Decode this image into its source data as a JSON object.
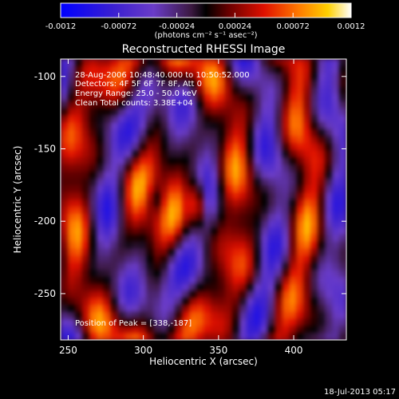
{
  "colorbar": {
    "ticks": [
      "-0.0012",
      "-0.00072",
      "-0.00024",
      "0.00024",
      "0.00072",
      "0.0012"
    ],
    "units": "(photons cm⁻² s⁻¹ asec⁻²)"
  },
  "annotations": {
    "time": "28-Aug-2006 10:48:40.000 to 10:50:52.000",
    "detectors": "Detectors: 4F 5F 6F 7F 8F, Att 0",
    "energy": "Energy Range: 25.0 - 50.0 keV",
    "clean": "Clean      Total counts: 3.38E+04",
    "peak": "Position of Peak = [338,-187]"
  },
  "footer": {
    "timestamp": "18-Jul-2013 05:17"
  },
  "chart_data": {
    "type": "heatmap",
    "title": "Reconstructed RHESSI Image",
    "xlabel": "Heliocentric X (arcsec)",
    "ylabel": "Heliocentric Y (arcsec)",
    "xlim": [
      245,
      435
    ],
    "ylim": [
      -282,
      -88
    ],
    "xticks": [
      250,
      300,
      350,
      400
    ],
    "yticks": [
      -100,
      -150,
      -200,
      -250
    ],
    "colorbar_range": [
      -0.0012,
      0.0012
    ],
    "colormap": [
      "#0000ff",
      "#6a3cc8",
      "#2b0f2a",
      "#000000",
      "#8b0000",
      "#ff4000",
      "#ffd000",
      "#ffffff"
    ],
    "peak_position": [
      338,
      -187
    ]
  }
}
